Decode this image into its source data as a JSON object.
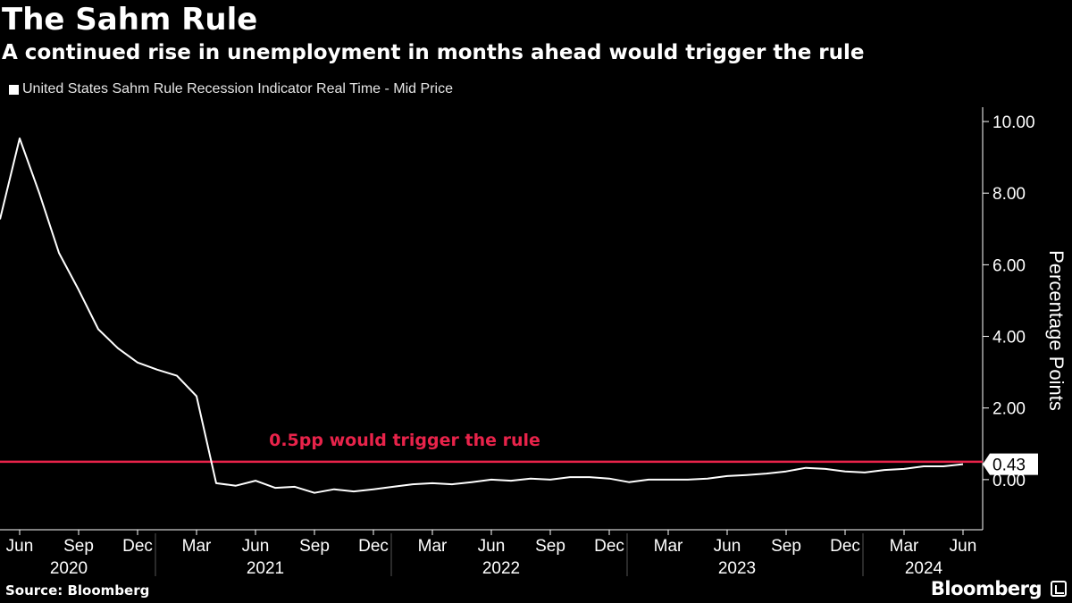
{
  "header": {
    "title": "The Sahm Rule",
    "subtitle": "A continued rise in unemployment in months ahead would trigger the rule"
  },
  "legend": {
    "label": "United States Sahm Rule Recession Indicator Real Time - Mid Price"
  },
  "footer": {
    "source": "Source: Bloomberg",
    "brand": "Bloomberg"
  },
  "colors": {
    "background": "#000000",
    "series_line": "#ffffff",
    "threshold_line": "#e8234a",
    "axis": "#ffffff"
  },
  "chart_data": {
    "type": "line",
    "title": "The Sahm Rule",
    "subtitle": "A continued rise in unemployment in months ahead would trigger the rule",
    "ylabel": "Percentage Points",
    "ylim": [
      -1.4,
      10.4
    ],
    "ytick_values": [
      0,
      2,
      4,
      6,
      8,
      10
    ],
    "ytick_labels": [
      "0.00",
      "2.00",
      "4.00",
      "6.00",
      "8.00",
      "10.00"
    ],
    "xlim": [
      "2020-05",
      "2024-07"
    ],
    "month_ticks": [
      {
        "date": "2020-06",
        "label": "Jun"
      },
      {
        "date": "2020-09",
        "label": "Sep"
      },
      {
        "date": "2020-12",
        "label": "Dec"
      },
      {
        "date": "2021-03",
        "label": "Mar"
      },
      {
        "date": "2021-06",
        "label": "Jun"
      },
      {
        "date": "2021-09",
        "label": "Sep"
      },
      {
        "date": "2021-12",
        "label": "Dec"
      },
      {
        "date": "2022-03",
        "label": "Mar"
      },
      {
        "date": "2022-06",
        "label": "Jun"
      },
      {
        "date": "2022-09",
        "label": "Sep"
      },
      {
        "date": "2022-12",
        "label": "Dec"
      },
      {
        "date": "2023-03",
        "label": "Mar"
      },
      {
        "date": "2023-06",
        "label": "Jun"
      },
      {
        "date": "2023-09",
        "label": "Sep"
      },
      {
        "date": "2023-12",
        "label": "Dec"
      },
      {
        "date": "2024-03",
        "label": "Mar"
      },
      {
        "date": "2024-06",
        "label": "Jun"
      }
    ],
    "year_labels": [
      {
        "label": "2020",
        "from": "2020-05",
        "to": "2020-12"
      },
      {
        "label": "2021",
        "from": "2021-01",
        "to": "2021-12"
      },
      {
        "label": "2022",
        "from": "2022-01",
        "to": "2022-12"
      },
      {
        "label": "2023",
        "from": "2023-01",
        "to": "2023-12"
      },
      {
        "label": "2024",
        "from": "2024-01",
        "to": "2024-07"
      }
    ],
    "year_separators": [
      "2021-01",
      "2022-01",
      "2023-01",
      "2024-01"
    ],
    "series": [
      {
        "name": "United States Sahm Rule Recession Indicator Real Time - Mid Price",
        "points": [
          [
            "2020-05",
            7.27
          ],
          [
            "2020-06",
            9.53
          ],
          [
            "2020-07",
            8.0
          ],
          [
            "2020-08",
            6.33
          ],
          [
            "2020-09",
            5.3
          ],
          [
            "2020-10",
            4.2
          ],
          [
            "2020-11",
            3.67
          ],
          [
            "2020-12",
            3.27
          ],
          [
            "2021-01",
            3.07
          ],
          [
            "2021-02",
            2.9
          ],
          [
            "2021-03",
            2.33
          ],
          [
            "2021-04",
            -0.1
          ],
          [
            "2021-05",
            -0.17
          ],
          [
            "2021-06",
            -0.03
          ],
          [
            "2021-07",
            -0.23
          ],
          [
            "2021-08",
            -0.2
          ],
          [
            "2021-09",
            -0.37
          ],
          [
            "2021-10",
            -0.27
          ],
          [
            "2021-11",
            -0.33
          ],
          [
            "2021-12",
            -0.27
          ],
          [
            "2022-01",
            -0.2
          ],
          [
            "2022-02",
            -0.13
          ],
          [
            "2022-03",
            -0.1
          ],
          [
            "2022-04",
            -0.13
          ],
          [
            "2022-05",
            -0.07
          ],
          [
            "2022-06",
            0.0
          ],
          [
            "2022-07",
            -0.03
          ],
          [
            "2022-08",
            0.03
          ],
          [
            "2022-09",
            0.0
          ],
          [
            "2022-10",
            0.07
          ],
          [
            "2022-11",
            0.07
          ],
          [
            "2022-12",
            0.03
          ],
          [
            "2023-01",
            -0.07
          ],
          [
            "2023-02",
            0.0
          ],
          [
            "2023-03",
            0.0
          ],
          [
            "2023-04",
            0.0
          ],
          [
            "2023-05",
            0.03
          ],
          [
            "2023-06",
            0.1
          ],
          [
            "2023-07",
            0.13
          ],
          [
            "2023-08",
            0.17
          ],
          [
            "2023-09",
            0.23
          ],
          [
            "2023-10",
            0.33
          ],
          [
            "2023-11",
            0.3
          ],
          [
            "2023-12",
            0.23
          ],
          [
            "2024-01",
            0.2
          ],
          [
            "2024-02",
            0.27
          ],
          [
            "2024-03",
            0.3
          ],
          [
            "2024-04",
            0.37
          ],
          [
            "2024-05",
            0.37
          ],
          [
            "2024-06",
            0.43
          ]
        ]
      }
    ],
    "threshold": {
      "value": 0.5,
      "label": "0.5pp would trigger the rule"
    },
    "last_value_label": "0.43",
    "grid": false,
    "legend_position": "top-left"
  }
}
